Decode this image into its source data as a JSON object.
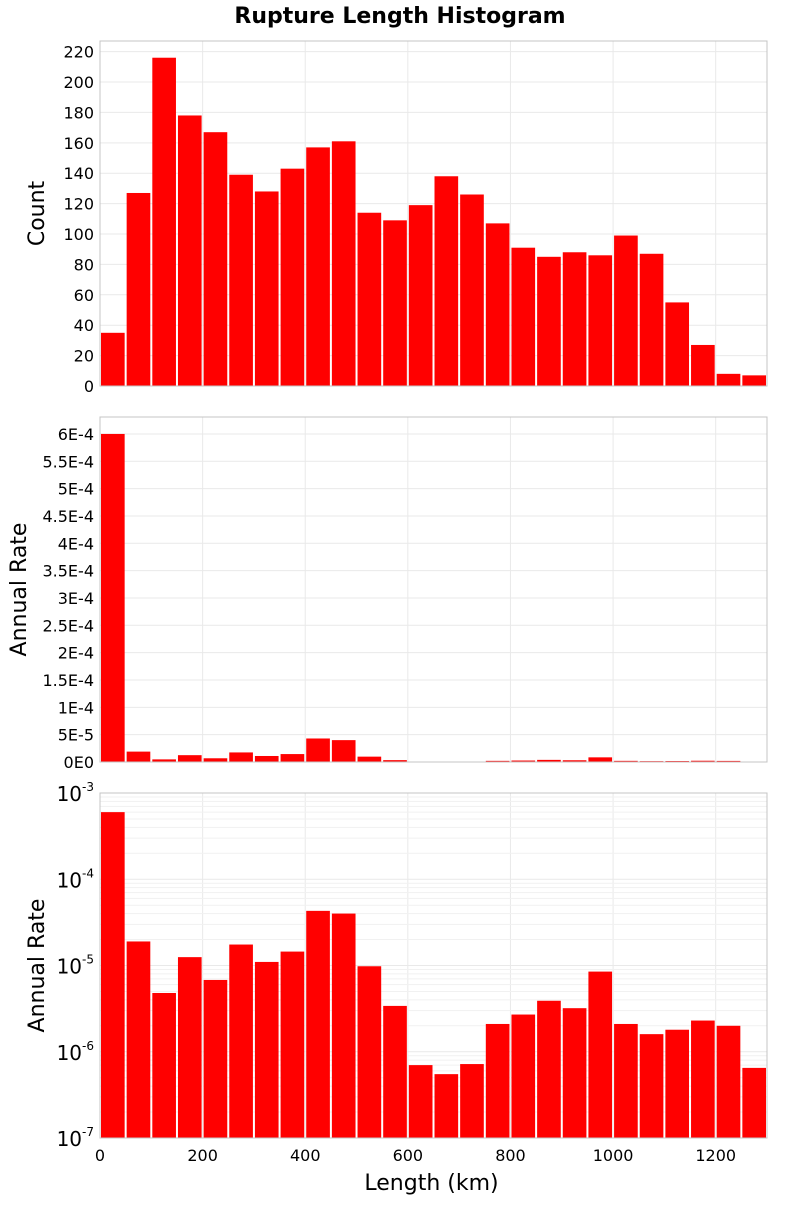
{
  "chart_data": [
    {
      "type": "bar",
      "title": "Rupture Length Histogram",
      "xlabel": "",
      "ylabel": "Count",
      "scale": "linear",
      "xlim": [
        0,
        1300
      ],
      "ylim": [
        0,
        227
      ],
      "bin_width": 50,
      "x": [
        25,
        75,
        125,
        175,
        225,
        275,
        325,
        375,
        425,
        475,
        525,
        575,
        625,
        675,
        725,
        775,
        825,
        875,
        925,
        975,
        1025,
        1075,
        1125,
        1175,
        1225,
        1275
      ],
      "values": [
        35,
        127,
        216,
        178,
        167,
        139,
        128,
        143,
        157,
        161,
        114,
        109,
        119,
        138,
        126,
        107,
        91,
        85,
        88,
        86,
        99,
        87,
        55,
        27,
        8,
        7
      ],
      "yticks": [
        0,
        20,
        40,
        60,
        80,
        100,
        120,
        140,
        160,
        180,
        200,
        220
      ],
      "ytick_labels": [
        "0",
        "20",
        "40",
        "60",
        "80",
        "100",
        "120",
        "140",
        "160",
        "180",
        "200",
        "220"
      ],
      "grid": true
    },
    {
      "type": "bar",
      "xlabel": "",
      "ylabel": "Annual Rate",
      "scale": "linear",
      "xlim": [
        0,
        1300
      ],
      "ylim": [
        0,
        0.000631
      ],
      "bin_width": 50,
      "x": [
        25,
        75,
        125,
        175,
        225,
        275,
        325,
        375,
        425,
        475,
        525,
        575,
        625,
        675,
        725,
        775,
        825,
        875,
        925,
        975,
        1025,
        1075,
        1125,
        1175,
        1225,
        1275
      ],
      "values": [
        0.0006,
        1.9e-05,
        4.8e-06,
        1.25e-05,
        6.8e-06,
        1.75e-05,
        1.1e-05,
        1.45e-05,
        4.3e-05,
        4e-05,
        9.8e-06,
        3.4e-06,
        7e-07,
        5.5e-07,
        7.2e-07,
        2.1e-06,
        2.7e-06,
        3.9e-06,
        3.2e-06,
        8.5e-06,
        2.1e-06,
        1.6e-06,
        1.8e-06,
        2.3e-06,
        2e-06,
        6.5e-07
      ],
      "yticks": [
        0,
        5e-05,
        0.0001,
        0.00015,
        0.0002,
        0.00025,
        0.0003,
        0.00035,
        0.0004,
        0.00045,
        0.0005,
        0.00055,
        0.0006
      ],
      "ytick_labels": [
        "0E0",
        "5E-5",
        "1E-4",
        "1.5E-4",
        "2E-4",
        "2.5E-4",
        "3E-4",
        "3.5E-4",
        "4E-4",
        "4.5E-4",
        "5E-4",
        "5.5E-4",
        "6E-4"
      ],
      "grid": true
    },
    {
      "type": "bar",
      "xlabel": "Length (km)",
      "ylabel": "Annual Rate",
      "scale": "log",
      "xlim": [
        0,
        1300
      ],
      "ylim": [
        1e-07,
        0.001
      ],
      "bin_width": 50,
      "x": [
        25,
        75,
        125,
        175,
        225,
        275,
        325,
        375,
        425,
        475,
        525,
        575,
        625,
        675,
        725,
        775,
        825,
        875,
        925,
        975,
        1025,
        1075,
        1125,
        1175,
        1225,
        1275
      ],
      "values": [
        0.0006,
        1.9e-05,
        4.8e-06,
        1.25e-05,
        6.8e-06,
        1.75e-05,
        1.1e-05,
        1.45e-05,
        4.3e-05,
        4e-05,
        9.8e-06,
        3.4e-06,
        7e-07,
        5.5e-07,
        7.2e-07,
        2.1e-06,
        2.7e-06,
        3.9e-06,
        3.2e-06,
        8.5e-06,
        2.1e-06,
        1.6e-06,
        1.8e-06,
        2.3e-06,
        2e-06,
        6.5e-07
      ],
      "ytick_exponents": [
        -7,
        -6,
        -5,
        -4,
        -3
      ],
      "ytick_base": "10",
      "xticks": [
        0,
        200,
        400,
        600,
        800,
        1000,
        1200
      ],
      "xtick_labels": [
        "0",
        "200",
        "400",
        "600",
        "800",
        "1000",
        "1200"
      ],
      "grid": true
    }
  ],
  "colors": {
    "bar": "#ff0000",
    "grid": "#e9e9e9",
    "frame": "#c4c4c4"
  }
}
